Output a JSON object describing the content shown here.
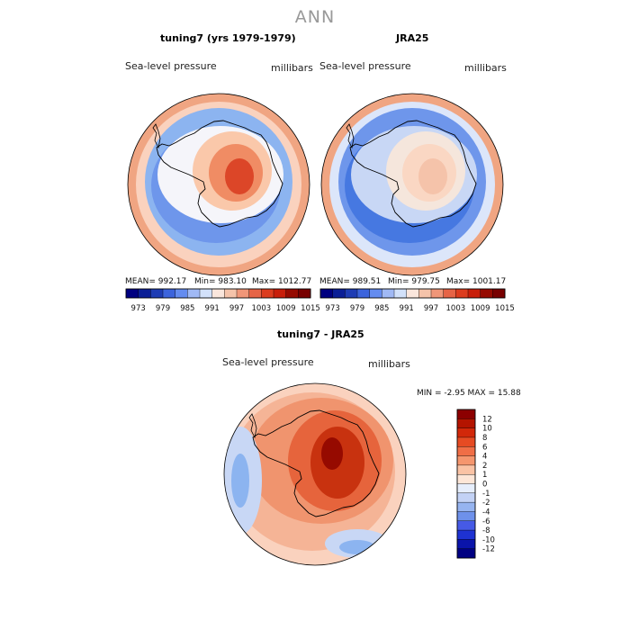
{
  "main_title": "ANN",
  "panels": {
    "model": {
      "title": "tuning7 (yrs 1979-1979)",
      "variable_label": "Sea-level pressure",
      "units_label": "millibars",
      "stats": {
        "mean": "MEAN= 992.17",
        "min": "Min= 983.10",
        "max": "Max= 1012.77"
      }
    },
    "obs": {
      "title": "JRA25",
      "variable_label": "Sea-level pressure",
      "units_label": "millibars",
      "stats": {
        "mean": "MEAN= 989.51",
        "min": "Min= 979.75",
        "max": "Max= 1001.17"
      }
    },
    "diff": {
      "title": "tuning7 - JRA25",
      "variable_label": "Sea-level pressure",
      "units_label": "millibars",
      "stats_text": "MIN =   -2.95 MAX =  15.88"
    }
  },
  "colorbar_horizontal": {
    "ticks": [
      "973",
      "979",
      "985",
      "991",
      "997",
      "1003",
      "1009",
      "1015"
    ],
    "colors": [
      "#000080",
      "#0a1e96",
      "#1e3cb4",
      "#3c64dc",
      "#648cf0",
      "#a0b9f5",
      "#d2e1fa",
      "#fae6dc",
      "#f5c3aa",
      "#f09678",
      "#e66446",
      "#dc3c1e",
      "#c81e0a",
      "#960a00",
      "#780000"
    ]
  },
  "colorbar_vertical": {
    "ticks": [
      "12",
      "10",
      "8",
      "6",
      "4",
      "2",
      "1",
      "0",
      "-1",
      "-2",
      "-4",
      "-6",
      "-8",
      "-10",
      "-12"
    ],
    "colors": [
      "#8c0000",
      "#b41400",
      "#d2280a",
      "#e64b23",
      "#f06e46",
      "#f5966e",
      "#fac3a5",
      "#fde6d7",
      "#e6eefc",
      "#c3d2f5",
      "#96b4f0",
      "#6e91eb",
      "#465ae6",
      "#1e32d2",
      "#0a14aa",
      "#000082"
    ]
  },
  "map_palette": {
    "model": {
      "ocean_outer": "#f0a582",
      "ocean_ring": "#fad2be",
      "ocean_mid": "#8cb4f0",
      "ocean_inner": "#6e96eb",
      "coast": "#f5f5fa",
      "interior_low": "#fac8aa",
      "interior_mid": "#f08c64",
      "interior_high": "#dc4628"
    },
    "obs": {
      "ocean_outer": "#f0a582",
      "ocean_ring": "#dce6fa",
      "ocean_mid": "#6e96eb",
      "ocean_inner": "#4678e1",
      "coast": "#c8d7f5",
      "interior_low": "#f5e6dc",
      "interior_mid": "#fad7c3",
      "interior_high": "#f5c3aa"
    },
    "diff": {
      "outer": "#fad2be",
      "ring": "#f5b496",
      "mid": "#f0946e",
      "inner": "#e6643c",
      "core": "#c8320f",
      "peak": "#960a00",
      "blue_patch": "#8cb4f0",
      "blue_light": "#c8d7f5"
    }
  }
}
